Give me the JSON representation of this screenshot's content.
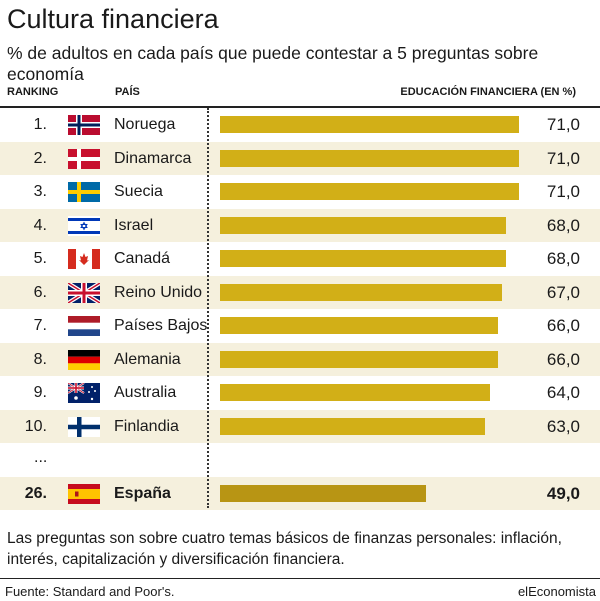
{
  "header": {
    "title": "Cultura financiera",
    "subtitle": "% de adultos en cada país que puede contestar a 5 preguntas sobre economía",
    "col_ranking": "RANKING",
    "col_pais": "PAÍS",
    "col_educacion": "EDUCACIÓN FINANCIERA (EN %)"
  },
  "ellipsis": "...",
  "footer": {
    "note": "Las preguntas son sobre cuatro temas básicos de finanzas personales: inflación, interés, capitalización y diversificación financiera.",
    "source": "Fuente: Standard and Poor's.",
    "brand": "elEconomista"
  },
  "colors": {
    "bar": "#d2af17",
    "bar_highlight": "#b89514",
    "row_shade": "#f5f0dd"
  },
  "chart_data": {
    "type": "bar",
    "orientation": "horizontal",
    "title": "Cultura financiera",
    "subtitle": "% de adultos en cada país que puede contestar a 5 preguntas sobre economía",
    "xlim": [
      0,
      75
    ],
    "rows": [
      {
        "rank": "1.",
        "country": "Noruega",
        "value": 71.0,
        "label": "71,0",
        "flag": "norway-flag-icon"
      },
      {
        "rank": "2.",
        "country": "Dinamarca",
        "value": 71.0,
        "label": "71,0",
        "flag": "denmark-flag-icon"
      },
      {
        "rank": "3.",
        "country": "Suecia",
        "value": 71.0,
        "label": "71,0",
        "flag": "sweden-flag-icon"
      },
      {
        "rank": "4.",
        "country": "Israel",
        "value": 68.0,
        "label": "68,0",
        "flag": "israel-flag-icon"
      },
      {
        "rank": "5.",
        "country": "Canadá",
        "value": 68.0,
        "label": "68,0",
        "flag": "canada-flag-icon"
      },
      {
        "rank": "6.",
        "country": "Reino Unido",
        "value": 67.0,
        "label": "67,0",
        "flag": "uk-flag-icon"
      },
      {
        "rank": "7.",
        "country": "Países Bajos",
        "value": 66.0,
        "label": "66,0",
        "flag": "netherlands-flag-icon"
      },
      {
        "rank": "8.",
        "country": "Alemania",
        "value": 66.0,
        "label": "66,0",
        "flag": "germany-flag-icon"
      },
      {
        "rank": "9.",
        "country": "Australia",
        "value": 64.0,
        "label": "64,0",
        "flag": "australia-flag-icon"
      },
      {
        "rank": "10.",
        "country": "Finlandia",
        "value": 63.0,
        "label": "63,0",
        "flag": "finland-flag-icon"
      }
    ],
    "highlight": {
      "rank": "26.",
      "country": "España",
      "value": 49.0,
      "label": "49,0",
      "flag": "spain-flag-icon"
    }
  }
}
